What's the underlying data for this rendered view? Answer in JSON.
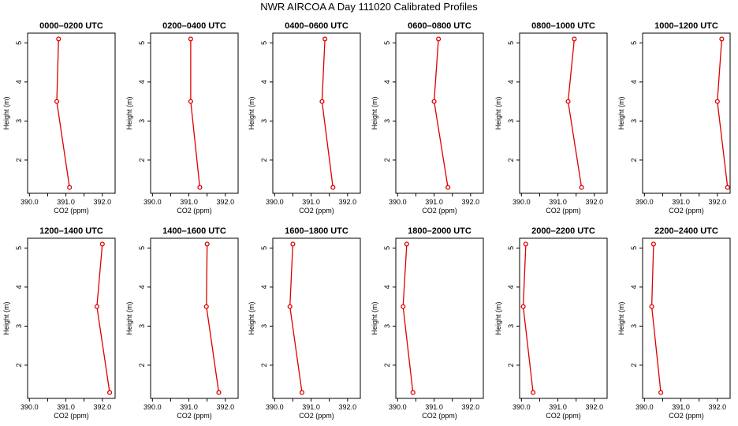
{
  "header": {
    "title": "NWR AIRCOA A  Day 111020  Calibrated Profiles"
  },
  "chart_data": [
    {
      "type": "line",
      "title": "0000–0200 UTC",
      "xlabel": "CO2 (ppm)",
      "ylabel": "Height (m)",
      "xticks": [
        "390.0",
        "391.0",
        "392.0"
      ],
      "yticks": [
        "2",
        "3",
        "4",
        "5"
      ],
      "xlim": [
        390.0,
        392.3
      ],
      "ylim": [
        1.3,
        5.1
      ],
      "x": [
        391.1,
        390.75,
        390.8
      ],
      "y": [
        1.3,
        3.5,
        5.1
      ],
      "color": "#dd0000"
    },
    {
      "type": "line",
      "title": "0200–0400 UTC",
      "xlabel": "CO2 (ppm)",
      "ylabel": "Height (m)",
      "xticks": [
        "390.0",
        "391.0",
        "392.0"
      ],
      "yticks": [
        "2",
        "3",
        "4",
        "5"
      ],
      "xlim": [
        390.0,
        392.3
      ],
      "ylim": [
        1.3,
        5.1
      ],
      "x": [
        391.3,
        391.05,
        391.05
      ],
      "y": [
        1.3,
        3.5,
        5.1
      ],
      "color": "#dd0000"
    },
    {
      "type": "line",
      "title": "0400–0600 UTC",
      "xlabel": "CO2 (ppm)",
      "ylabel": "Height (m)",
      "xticks": [
        "390.0",
        "391.0",
        "392.0"
      ],
      "yticks": [
        "2",
        "3",
        "4",
        "5"
      ],
      "xlim": [
        390.0,
        392.3
      ],
      "ylim": [
        1.3,
        5.1
      ],
      "x": [
        391.6,
        391.3,
        391.38
      ],
      "y": [
        1.3,
        3.5,
        5.1
      ],
      "color": "#dd0000"
    },
    {
      "type": "line",
      "title": "0600–0800 UTC",
      "xlabel": "CO2 (ppm)",
      "ylabel": "Height (m)",
      "xticks": [
        "390.0",
        "391.0",
        "392.0"
      ],
      "yticks": [
        "2",
        "3",
        "4",
        "5"
      ],
      "xlim": [
        390.0,
        392.3
      ],
      "ylim": [
        1.3,
        5.1
      ],
      "x": [
        391.38,
        391.0,
        391.12
      ],
      "y": [
        1.3,
        3.5,
        5.1
      ],
      "color": "#dd0000"
    },
    {
      "type": "line",
      "title": "0800–1000 UTC",
      "xlabel": "CO2 (ppm)",
      "ylabel": "Height (m)",
      "xticks": [
        "390.0",
        "391.0",
        "392.0"
      ],
      "yticks": [
        "2",
        "3",
        "4",
        "5"
      ],
      "xlim": [
        390.0,
        392.3
      ],
      "ylim": [
        1.3,
        5.1
      ],
      "x": [
        391.65,
        391.28,
        391.45
      ],
      "y": [
        1.3,
        3.5,
        5.1
      ],
      "color": "#dd0000"
    },
    {
      "type": "line",
      "title": "1000–1200 UTC",
      "xlabel": "CO2 (ppm)",
      "ylabel": "Height (m)",
      "xticks": [
        "390.0",
        "391.0",
        "392.0"
      ],
      "yticks": [
        "2",
        "3",
        "4",
        "5"
      ],
      "xlim": [
        390.0,
        392.3
      ],
      "ylim": [
        1.3,
        5.1
      ],
      "x": [
        392.28,
        392.0,
        392.12
      ],
      "y": [
        1.3,
        3.5,
        5.1
      ],
      "color": "#dd0000"
    },
    {
      "type": "line",
      "title": "1200–1400 UTC",
      "xlabel": "CO2 (ppm)",
      "ylabel": "Height (m)",
      "xticks": [
        "390.0",
        "391.0",
        "392.0"
      ],
      "yticks": [
        "2",
        "3",
        "4",
        "5"
      ],
      "xlim": [
        390.0,
        392.3
      ],
      "ylim": [
        1.3,
        5.1
      ],
      "x": [
        392.2,
        391.85,
        392.0
      ],
      "y": [
        1.3,
        3.5,
        5.1
      ],
      "color": "#dd0000"
    },
    {
      "type": "line",
      "title": "1400–1600 UTC",
      "xlabel": "CO2 (ppm)",
      "ylabel": "Height (m)",
      "xticks": [
        "390.0",
        "391.0",
        "392.0"
      ],
      "yticks": [
        "2",
        "3",
        "4",
        "5"
      ],
      "xlim": [
        390.0,
        392.3
      ],
      "ylim": [
        1.3,
        5.1
      ],
      "x": [
        391.82,
        391.48,
        391.5
      ],
      "y": [
        1.3,
        3.5,
        5.1
      ],
      "color": "#dd0000"
    },
    {
      "type": "line",
      "title": "1600–1800 UTC",
      "xlabel": "CO2 (ppm)",
      "ylabel": "Height (m)",
      "xticks": [
        "390.0",
        "391.0",
        "392.0"
      ],
      "yticks": [
        "2",
        "3",
        "4",
        "5"
      ],
      "xlim": [
        390.0,
        392.3
      ],
      "ylim": [
        1.3,
        5.1
      ],
      "x": [
        390.75,
        390.42,
        390.5
      ],
      "y": [
        1.3,
        3.5,
        5.1
      ],
      "color": "#dd0000"
    },
    {
      "type": "line",
      "title": "1800–2000 UTC",
      "xlabel": "CO2 (ppm)",
      "ylabel": "Height (m)",
      "xticks": [
        "390.0",
        "391.0",
        "392.0"
      ],
      "yticks": [
        "2",
        "3",
        "4",
        "5"
      ],
      "xlim": [
        390.0,
        392.3
      ],
      "ylim": [
        1.3,
        5.1
      ],
      "x": [
        390.42,
        390.15,
        390.25
      ],
      "y": [
        1.3,
        3.5,
        5.1
      ],
      "color": "#dd0000"
    },
    {
      "type": "line",
      "title": "2000–2200 UTC",
      "xlabel": "CO2 (ppm)",
      "ylabel": "Height (m)",
      "xticks": [
        "390.0",
        "391.0",
        "392.0"
      ],
      "yticks": [
        "2",
        "3",
        "4",
        "5"
      ],
      "xlim": [
        390.0,
        392.3
      ],
      "ylim": [
        1.3,
        5.1
      ],
      "x": [
        390.32,
        390.05,
        390.12
      ],
      "y": [
        1.3,
        3.5,
        5.1
      ],
      "color": "#dd0000"
    },
    {
      "type": "line",
      "title": "2200–2400 UTC",
      "xlabel": "CO2 (ppm)",
      "ylabel": "Height (m)",
      "xticks": [
        "390.0",
        "391.0",
        "392.0"
      ],
      "yticks": [
        "2",
        "3",
        "4",
        "5"
      ],
      "xlim": [
        390.0,
        392.3
      ],
      "ylim": [
        1.3,
        5.1
      ],
      "x": [
        390.45,
        390.2,
        390.25
      ],
      "y": [
        1.3,
        3.5,
        5.1
      ],
      "color": "#dd0000"
    }
  ]
}
